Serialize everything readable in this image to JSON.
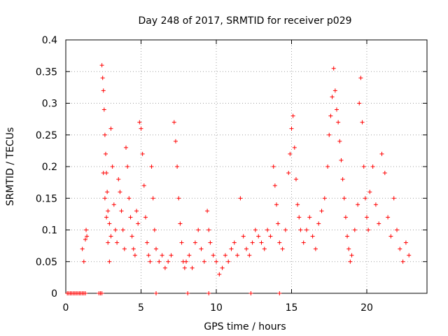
{
  "chart_data": {
    "type": "scatter",
    "title": "Day 248 of 2017, SRMTID for receiver p029",
    "xlabel": "GPS time / hours",
    "ylabel": "SRMTID / TECUs",
    "xlim": [
      0,
      24
    ],
    "ylim": [
      0,
      0.4
    ],
    "x_ticks": [
      0,
      5,
      10,
      15,
      20
    ],
    "x_tick_labels": [
      "0",
      "5",
      "10",
      "15",
      "20"
    ],
    "y_ticks": [
      0,
      0.05,
      0.1,
      0.15,
      0.2,
      0.25,
      0.3,
      0.35,
      0.4
    ],
    "y_tick_labels": [
      "0",
      "0.05",
      "0.1",
      "0.15",
      "0.2",
      "0.25",
      "0.3",
      "0.35",
      "0.4"
    ],
    "grid": true,
    "series": [
      {
        "name": "SRMTID",
        "marker": "+",
        "color": "#ff0000",
        "points": [
          [
            1.1,
            0.07
          ],
          [
            1.2,
            0.05
          ],
          [
            1.3,
            0.085
          ],
          [
            1.35,
            0.1
          ],
          [
            1.4,
            0.09
          ],
          [
            2.4,
            0.36
          ],
          [
            2.45,
            0.34
          ],
          [
            2.5,
            0.32
          ],
          [
            2.55,
            0.29
          ],
          [
            2.6,
            0.25
          ],
          [
            2.65,
            0.22
          ],
          [
            2.7,
            0.19
          ],
          [
            2.75,
            0.16
          ],
          [
            2.8,
            0.13
          ],
          [
            2.9,
            0.11
          ],
          [
            3.0,
            0.09
          ],
          [
            2.5,
            0.19
          ],
          [
            2.6,
            0.15
          ],
          [
            2.7,
            0.12
          ],
          [
            2.8,
            0.08
          ],
          [
            2.9,
            0.05
          ],
          [
            3.0,
            0.26
          ],
          [
            3.1,
            0.2
          ],
          [
            3.2,
            0.14
          ],
          [
            3.3,
            0.1
          ],
          [
            3.4,
            0.08
          ],
          [
            3.5,
            0.18
          ],
          [
            3.6,
            0.16
          ],
          [
            3.7,
            0.13
          ],
          [
            3.8,
            0.1
          ],
          [
            3.9,
            0.07
          ],
          [
            4.0,
            0.23
          ],
          [
            4.1,
            0.2
          ],
          [
            4.2,
            0.15
          ],
          [
            4.3,
            0.12
          ],
          [
            4.4,
            0.09
          ],
          [
            4.5,
            0.07
          ],
          [
            4.6,
            0.06
          ],
          [
            4.7,
            0.13
          ],
          [
            4.8,
            0.11
          ],
          [
            4.9,
            0.27
          ],
          [
            5.0,
            0.26
          ],
          [
            5.1,
            0.22
          ],
          [
            5.2,
            0.17
          ],
          [
            5.3,
            0.12
          ],
          [
            5.4,
            0.08
          ],
          [
            5.5,
            0.06
          ],
          [
            5.6,
            0.05
          ],
          [
            5.7,
            0.2
          ],
          [
            5.8,
            0.15
          ],
          [
            5.9,
            0.1
          ],
          [
            6.0,
            0.07
          ],
          [
            6.2,
            0.05
          ],
          [
            6.4,
            0.06
          ],
          [
            6.6,
            0.04
          ],
          [
            6.8,
            0.05
          ],
          [
            7.0,
            0.06
          ],
          [
            7.2,
            0.27
          ],
          [
            7.3,
            0.24
          ],
          [
            7.4,
            0.2
          ],
          [
            7.5,
            0.15
          ],
          [
            7.6,
            0.11
          ],
          [
            7.7,
            0.08
          ],
          [
            7.8,
            0.05
          ],
          [
            7.9,
            0.04
          ],
          [
            8.0,
            0.05
          ],
          [
            8.2,
            0.06
          ],
          [
            8.4,
            0.04
          ],
          [
            8.6,
            0.08
          ],
          [
            8.8,
            0.1
          ],
          [
            9.0,
            0.07
          ],
          [
            9.2,
            0.05
          ],
          [
            9.4,
            0.13
          ],
          [
            9.5,
            0.1
          ],
          [
            9.6,
            0.08
          ],
          [
            9.8,
            0.06
          ],
          [
            10.0,
            0.05
          ],
          [
            10.2,
            0.03
          ],
          [
            10.4,
            0.04
          ],
          [
            10.6,
            0.06
          ],
          [
            10.8,
            0.05
          ],
          [
            11.0,
            0.07
          ],
          [
            11.2,
            0.08
          ],
          [
            11.4,
            0.06
          ],
          [
            11.6,
            0.15
          ],
          [
            11.8,
            0.09
          ],
          [
            12.0,
            0.07
          ],
          [
            12.2,
            0.06
          ],
          [
            12.4,
            0.08
          ],
          [
            12.6,
            0.1
          ],
          [
            12.8,
            0.09
          ],
          [
            13.0,
            0.08
          ],
          [
            13.2,
            0.07
          ],
          [
            13.4,
            0.1
          ],
          [
            13.6,
            0.09
          ],
          [
            13.8,
            0.2
          ],
          [
            13.9,
            0.17
          ],
          [
            14.0,
            0.14
          ],
          [
            14.1,
            0.11
          ],
          [
            14.2,
            0.08
          ],
          [
            14.4,
            0.07
          ],
          [
            14.6,
            0.1
          ],
          [
            14.8,
            0.19
          ],
          [
            14.9,
            0.22
          ],
          [
            15.0,
            0.26
          ],
          [
            15.1,
            0.28
          ],
          [
            15.2,
            0.23
          ],
          [
            15.3,
            0.18
          ],
          [
            15.4,
            0.14
          ],
          [
            15.5,
            0.12
          ],
          [
            15.6,
            0.1
          ],
          [
            15.8,
            0.08
          ],
          [
            16.0,
            0.1
          ],
          [
            16.2,
            0.12
          ],
          [
            16.4,
            0.09
          ],
          [
            16.6,
            0.07
          ],
          [
            16.8,
            0.11
          ],
          [
            17.0,
            0.13
          ],
          [
            17.2,
            0.15
          ],
          [
            17.4,
            0.2
          ],
          [
            17.5,
            0.25
          ],
          [
            17.6,
            0.28
          ],
          [
            17.7,
            0.31
          ],
          [
            17.8,
            0.355
          ],
          [
            17.9,
            0.32
          ],
          [
            18.0,
            0.29
          ],
          [
            18.1,
            0.27
          ],
          [
            18.2,
            0.24
          ],
          [
            18.3,
            0.21
          ],
          [
            18.4,
            0.18
          ],
          [
            18.5,
            0.15
          ],
          [
            18.6,
            0.12
          ],
          [
            18.7,
            0.09
          ],
          [
            18.8,
            0.07
          ],
          [
            18.9,
            0.05
          ],
          [
            19.0,
            0.06
          ],
          [
            19.2,
            0.1
          ],
          [
            19.4,
            0.14
          ],
          [
            19.5,
            0.3
          ],
          [
            19.6,
            0.34
          ],
          [
            19.7,
            0.27
          ],
          [
            19.8,
            0.2
          ],
          [
            19.9,
            0.15
          ],
          [
            20.0,
            0.12
          ],
          [
            20.1,
            0.1
          ],
          [
            20.2,
            0.16
          ],
          [
            20.4,
            0.2
          ],
          [
            20.6,
            0.14
          ],
          [
            20.8,
            0.11
          ],
          [
            21.0,
            0.22
          ],
          [
            21.2,
            0.19
          ],
          [
            21.4,
            0.12
          ],
          [
            21.6,
            0.09
          ],
          [
            21.8,
            0.15
          ],
          [
            22.0,
            0.1
          ],
          [
            22.2,
            0.07
          ],
          [
            22.4,
            0.05
          ],
          [
            22.6,
            0.08
          ],
          [
            22.8,
            0.06
          ],
          [
            0.1,
            0.0
          ],
          [
            0.2,
            0.0
          ],
          [
            0.3,
            0.0
          ],
          [
            0.4,
            0.0
          ],
          [
            0.5,
            0.0
          ],
          [
            0.6,
            0.0
          ],
          [
            0.7,
            0.0
          ],
          [
            0.8,
            0.0
          ],
          [
            0.9,
            0.0
          ],
          [
            1.0,
            0.0
          ],
          [
            1.1,
            0.0
          ],
          [
            1.2,
            0.0
          ],
          [
            1.3,
            0.0
          ],
          [
            2.2,
            0.0
          ],
          [
            2.3,
            0.0
          ],
          [
            2.4,
            0.0
          ],
          [
            6.0,
            0.0
          ],
          [
            8.1,
            0.0
          ],
          [
            9.5,
            0.0
          ],
          [
            12.3,
            0.0
          ],
          [
            14.2,
            0.0
          ]
        ]
      }
    ]
  }
}
